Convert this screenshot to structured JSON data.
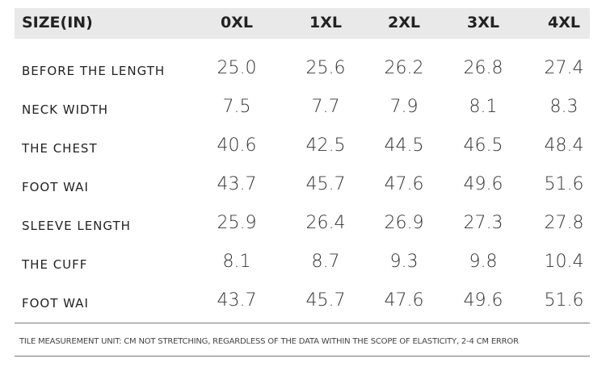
{
  "table": {
    "header": [
      "SIZE(IN)",
      "0XL",
      "1XL",
      "2XL",
      "3XL",
      "4XL"
    ],
    "rows": [
      [
        "BEFORE THE LENGTH",
        "25.0",
        "25.6",
        "26.2",
        "26.8",
        "27.4"
      ],
      [
        "NECK WIDTH",
        "7.5",
        "7.7",
        "7.9",
        "8.1",
        "8.3"
      ],
      [
        "THE CHEST",
        "40.6",
        "42.5",
        "44.5",
        "46.5",
        "48.4"
      ],
      [
        "FOOT WAI",
        "43.7",
        "45.7",
        "47.6",
        "49.6",
        "51.6"
      ],
      [
        "SLEEVE LENGTH",
        "25.9",
        "26.4",
        "26.9",
        "27.3",
        "27.8"
      ],
      [
        "THE CUFF",
        "8.1",
        "8.7",
        "9.3",
        "9.8",
        "10.4"
      ],
      [
        "FOOT WAI",
        "43.7",
        "45.7",
        "47.6",
        "49.6",
        "51.6"
      ]
    ]
  },
  "note": "TILE MEASUREMENT UNIT: CM NOT STRETCHING, REGARDLESS OF THE DATA WITHIN THE SCOPE OF ELASTICITY, 2-4 CM ERROR"
}
